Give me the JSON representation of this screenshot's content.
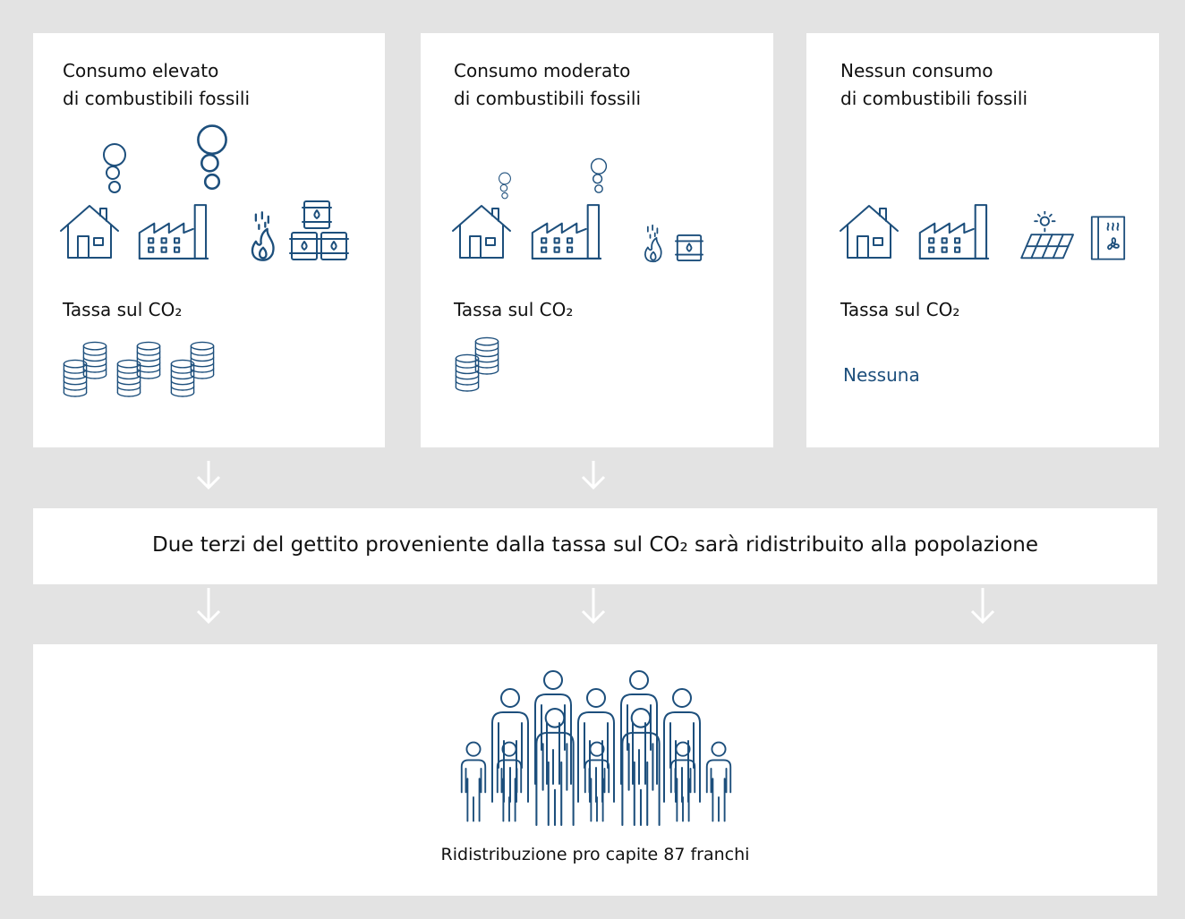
{
  "panels": [
    {
      "title_lines": [
        "Consumo elevato",
        "di combustibili fossili"
      ],
      "tax_label": "Tassa sul CO₂"
    },
    {
      "title_lines": [
        "Consumo moderato",
        "di combustibili fossili"
      ],
      "tax_label": "Tassa sul CO₂"
    },
    {
      "title_lines": [
        "Nessun consumo",
        "di combustibili fossili"
      ],
      "tax_label": "Tassa sul CO₂",
      "tax_value": "Nessuna"
    }
  ],
  "banner": {
    "text": "Due terzi del gettito proveniente dalla tassa sul CO₂ sarà ridistribuito alla popolazione"
  },
  "footer": {
    "text": "Ridistribuzione pro capite 87 franchi"
  }
}
